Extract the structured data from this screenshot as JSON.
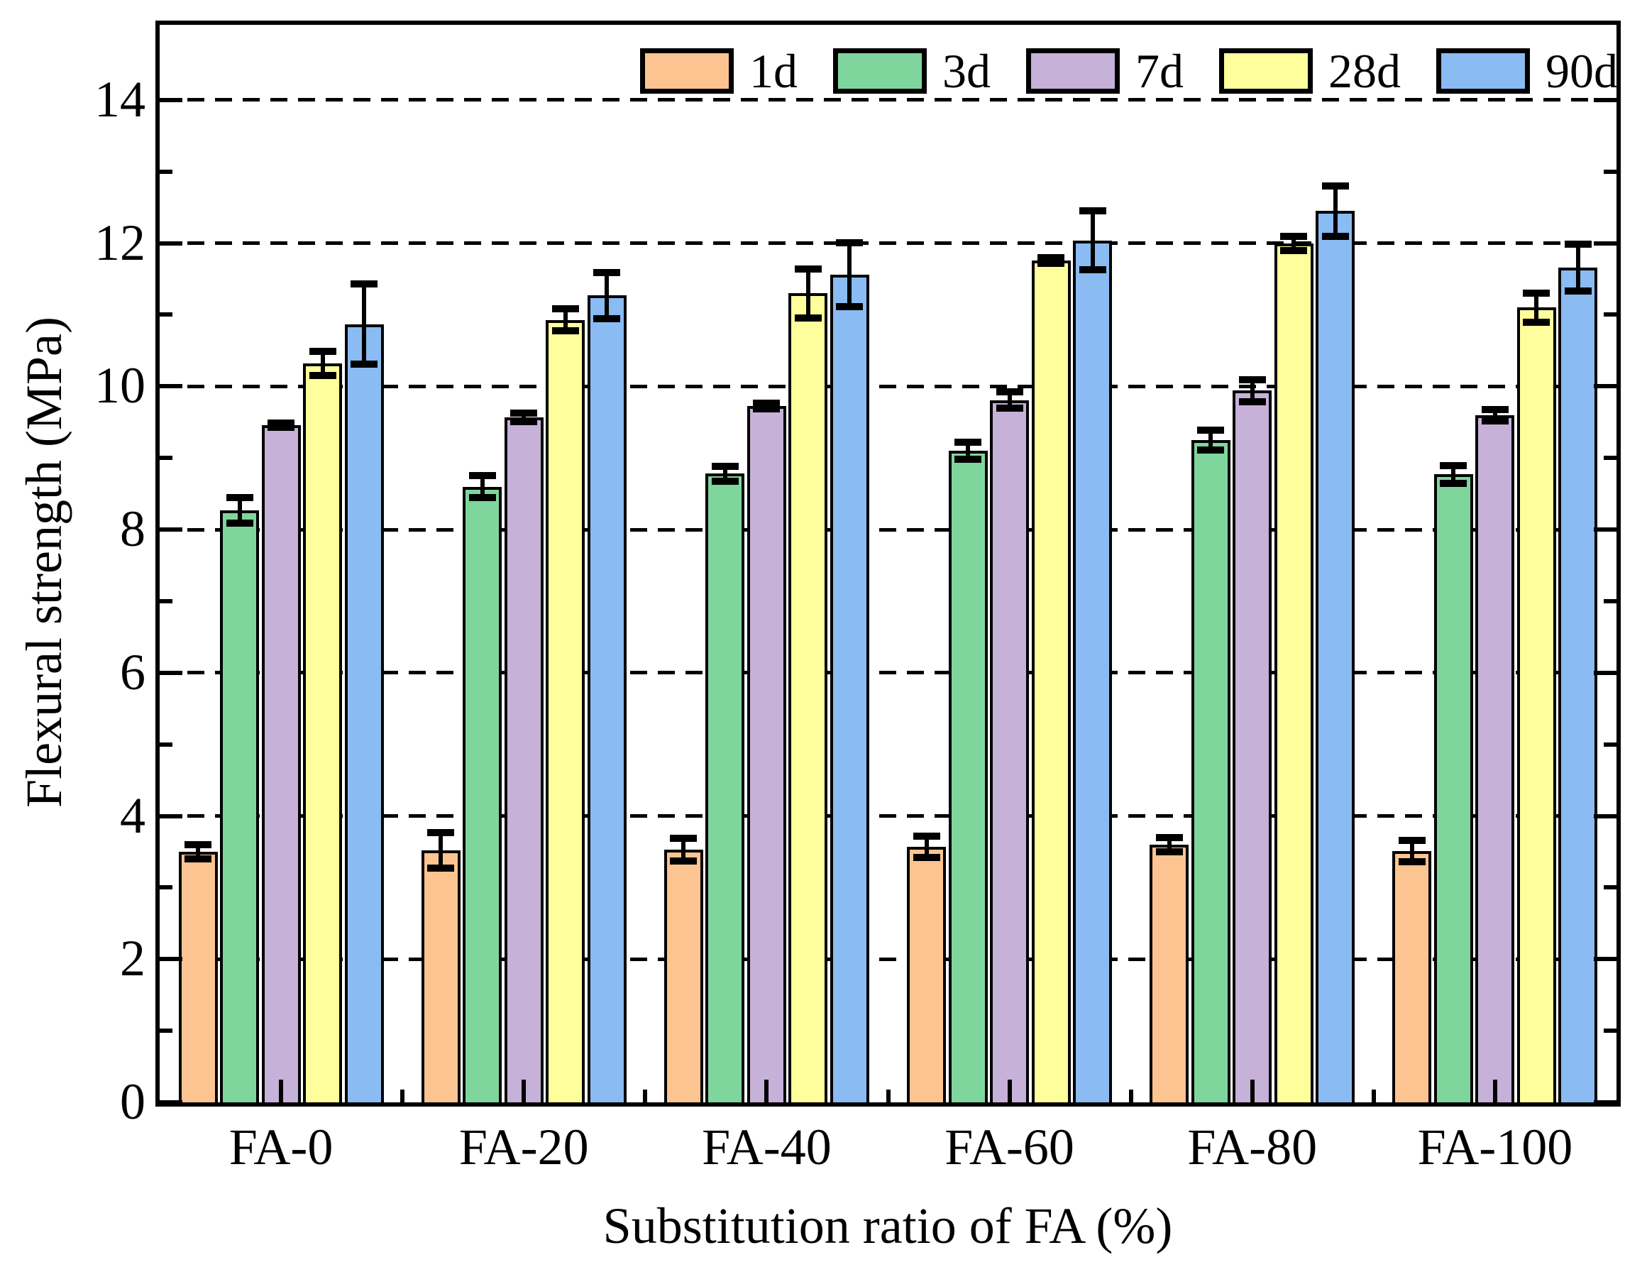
{
  "chart_data": {
    "type": "bar",
    "title": "",
    "xlabel": "Substitution ratio of FA (%)",
    "ylabel": "Flexural strength (MPa)",
    "categories": [
      "FA-0",
      "FA-20",
      "FA-40",
      "FA-60",
      "FA-80",
      "FA-100"
    ],
    "series": [
      {
        "name": "1d",
        "color": "#FCC490",
        "values": [
          3.5,
          3.52,
          3.53,
          3.57,
          3.6,
          3.51
        ],
        "errors": [
          0.1,
          0.25,
          0.16,
          0.15,
          0.1,
          0.15
        ]
      },
      {
        "name": "3d",
        "color": "#7FD69C",
        "values": [
          8.27,
          8.6,
          8.78,
          9.1,
          9.25,
          8.77
        ],
        "errors": [
          0.18,
          0.15,
          0.1,
          0.12,
          0.14,
          0.12
        ]
      },
      {
        "name": "7d",
        "color": "#C6B1D8",
        "values": [
          9.46,
          9.57,
          9.73,
          9.81,
          9.94,
          9.6
        ],
        "errors": [
          0.03,
          0.06,
          0.04,
          0.11,
          0.15,
          0.08
        ]
      },
      {
        "name": "28d",
        "color": "#FEFE9C",
        "values": [
          10.32,
          10.93,
          11.3,
          11.76,
          12.0,
          11.1
        ],
        "errors": [
          0.17,
          0.15,
          0.34,
          0.04,
          0.1,
          0.2
        ]
      },
      {
        "name": "90d",
        "color": "#8ABBF2",
        "values": [
          10.87,
          11.27,
          11.56,
          12.04,
          12.45,
          11.66
        ],
        "errors": [
          0.56,
          0.32,
          0.45,
          0.41,
          0.35,
          0.33
        ]
      }
    ],
    "error_bars": true,
    "ylim": [
      0,
      15.05
    ],
    "yticks_major": [
      0,
      2,
      4,
      6,
      8,
      10,
      12,
      14
    ],
    "yticks_minor": [
      1,
      3,
      5,
      7,
      9,
      11,
      13
    ],
    "grid": "horizontal dashed black lines at major y ticks, drawn behind bars",
    "legend_position": "top-inside-horizontal",
    "axis_color": "#000000",
    "background_color": "#ffffff"
  }
}
